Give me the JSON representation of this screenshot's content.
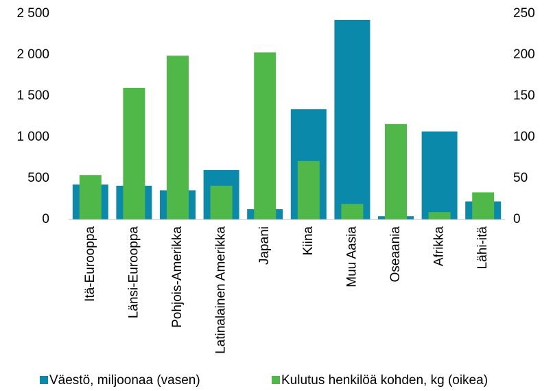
{
  "chart_data": {
    "type": "bar",
    "categories": [
      "Itä-Eurooppa",
      "Länsi-Eurooppa",
      "Pohjois-Amerikka",
      "Latinalainen Amerikka",
      "Japani",
      "Kiina",
      "Muu Aasia",
      "Oseaania",
      "Afrikka",
      "Lähi-itä"
    ],
    "series": [
      {
        "name": "Väestö, miljoonaa (vasen)",
        "color": "#0a89aa",
        "values": [
          425,
          410,
          355,
          600,
          125,
          1340,
          2425,
          40,
          1070,
          220
        ]
      },
      {
        "name": "Kulutus henkilöä kohden, kg (oikea)",
        "color": "#50b848",
        "axis": "y2",
        "values": [
          54,
          160,
          199,
          41,
          203,
          71,
          19,
          116,
          9,
          33
        ]
      }
    ],
    "ylim": [
      0,
      2500
    ],
    "yticks": [
      0,
      500,
      {
        "value": 1000,
        "label": "1 000"
      },
      {
        "value": 1500,
        "label": "1 500"
      },
      {
        "value": 2000,
        "label": "2 000"
      },
      {
        "value": 2500,
        "label": "2 500"
      }
    ],
    "y2lim": [
      0,
      250
    ],
    "y2ticks": [
      0,
      50,
      100,
      150,
      200,
      250
    ],
    "legend": "bottom"
  }
}
